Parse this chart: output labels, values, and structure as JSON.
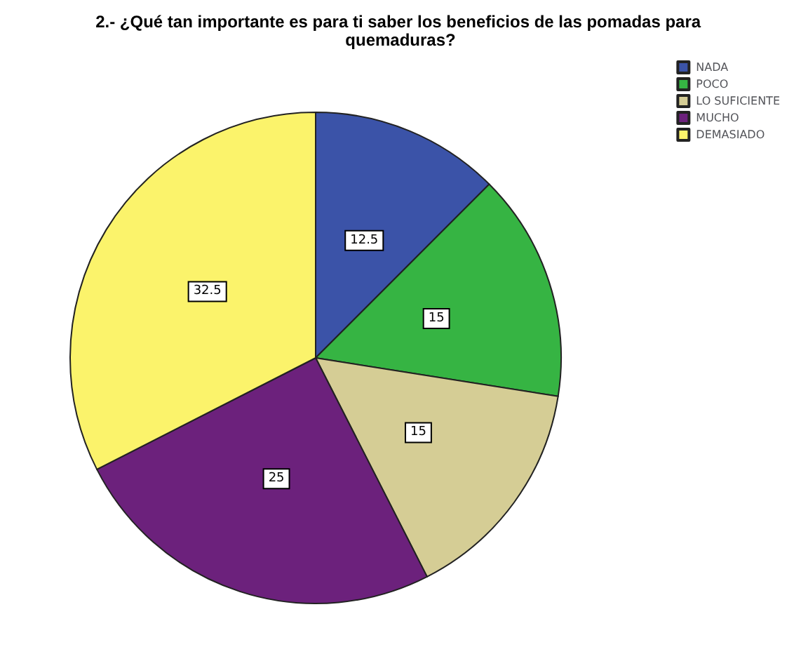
{
  "chart_data": {
    "type": "pie",
    "title": "2.- ¿Qué tan importante es para ti saber los beneficios de las pomadas para quemaduras?",
    "categories": [
      "NADA",
      "POCO",
      "LO SUFICIENTE",
      "MUCHO",
      "DEMASIADO"
    ],
    "values": [
      12.5,
      15,
      15,
      25,
      32.5
    ],
    "colors": [
      "#3b53a8",
      "#36b443",
      "#d5cd95",
      "#6c217c",
      "#fbf36b"
    ],
    "data_labels": true,
    "legend": "top right"
  }
}
